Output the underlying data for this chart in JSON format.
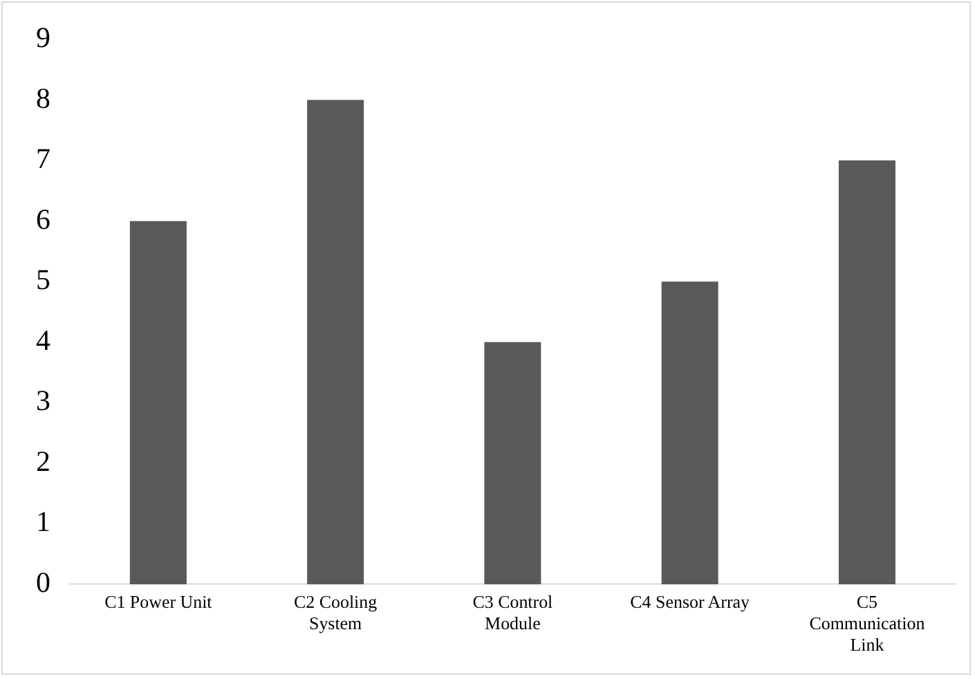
{
  "chart_data": {
    "type": "bar",
    "categories": [
      "C1 Power Unit",
      "C2 Cooling System",
      "C3 Control Module",
      "C4 Sensor Array",
      "C5 Communication Link"
    ],
    "values": [
      6,
      8,
      4,
      5,
      7
    ],
    "color": "#595959",
    "ylim": [
      0,
      9
    ],
    "yticks": [
      0,
      1,
      2,
      3,
      4,
      5,
      6,
      7,
      8,
      9
    ],
    "grid": false,
    "legend": false
  }
}
